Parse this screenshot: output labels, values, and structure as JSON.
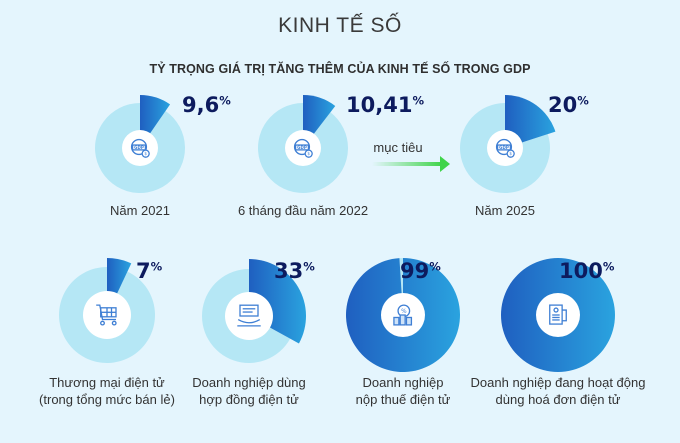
{
  "header": {
    "title": "KINH TẾ SỐ",
    "subtitle": "TỶ TRỌNG GIÁ TRỊ TĂNG THÊM CỦA KINH TẾ SỐ TRONG GDP"
  },
  "arrow": {
    "label": "mục tiêu"
  },
  "colors": {
    "background": "#e4f5fd",
    "ring_light": "#b5e7f5",
    "accent_start": "#1f5fc0",
    "accent_end": "#2aa3df",
    "value_text": "#0d1b5e",
    "arrow_green": "#3fd44a"
  },
  "chart_data": [
    {
      "type": "pie",
      "title": "TỶ TRỌNG GIÁ TRỊ TĂNG THÊM CỦA KINH TẾ SỐ TRONG GDP",
      "items": [
        {
          "label": "Năm 2021",
          "value": 9.6,
          "value_text": "9,6",
          "unit": "%",
          "icon": "gdp-globe-icon"
        },
        {
          "label": "6 tháng đầu năm 2022",
          "value": 10.41,
          "value_text": "10,41",
          "unit": "%",
          "icon": "gdp-globe-icon"
        },
        {
          "label": "Năm 2025",
          "value": 20,
          "value_text": "20",
          "unit": "%",
          "icon": "gdp-globe-icon"
        }
      ]
    },
    {
      "type": "pie",
      "items": [
        {
          "label_lines": [
            "Thương mại điện tử",
            "(trong tổng mức bán lẻ)"
          ],
          "value": 7,
          "value_text": "7",
          "unit": "%",
          "icon": "shopping-cart-icon"
        },
        {
          "label_lines": [
            "Doanh nghiệp dùng",
            "hợp đồng điện tử"
          ],
          "value": 33,
          "value_text": "33",
          "unit": "%",
          "icon": "contract-handshake-icon"
        },
        {
          "label_lines": [
            "Doanh nghiệp",
            "nộp thuế điện tử"
          ],
          "value": 99,
          "value_text": "99",
          "unit": "%",
          "icon": "tax-coins-icon"
        },
        {
          "label_lines": [
            "Doanh nghiệp đang hoạt động",
            "dùng hoá đơn điện tử"
          ],
          "value": 100,
          "value_text": "100",
          "unit": "%",
          "icon": "invoice-icon"
        }
      ]
    }
  ]
}
